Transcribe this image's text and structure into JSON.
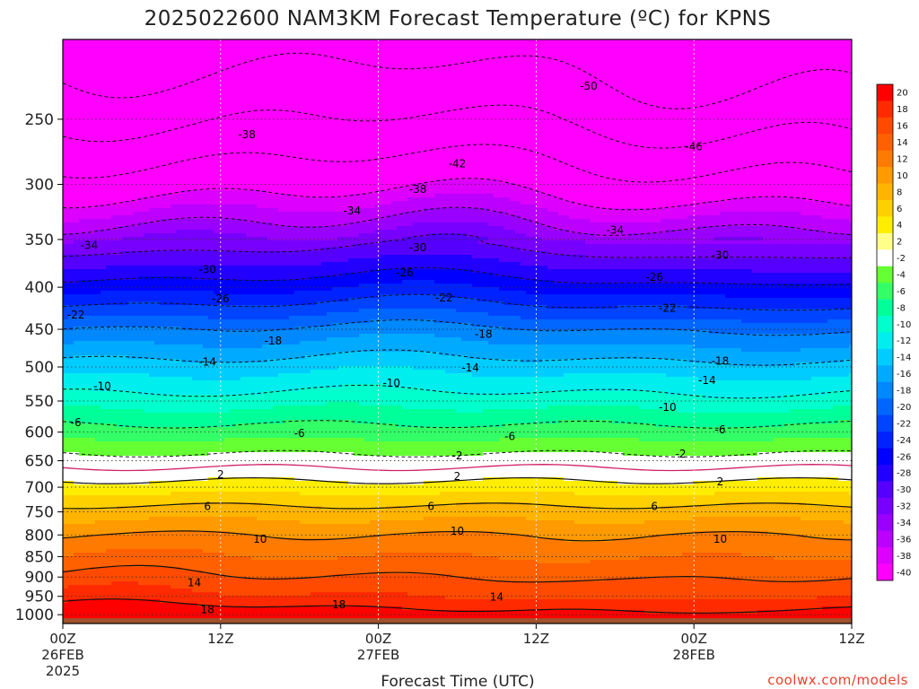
{
  "title": "2025022600 NAM3KM Forecast Temperature (ºC) for KPNS",
  "credit": "coolwx.com/models",
  "colors": {
    "ground": "#a0522d",
    "freezing_line": "#d0206a",
    "contour": "#111111",
    "credit": "#e8402a"
  },
  "chart_data": {
    "type": "contour",
    "title": "2025022600 NAM3KM Forecast Temperature (ºC) for KPNS",
    "xlabel": "Forecast Time (UTC)",
    "ylabel": "",
    "x_ticks": [
      {
        "hour": 0,
        "label": "00Z",
        "sub1": "26FEB",
        "sub2": "2025"
      },
      {
        "hour": 12,
        "label": "12Z",
        "sub1": "",
        "sub2": ""
      },
      {
        "hour": 24,
        "label": "00Z",
        "sub1": "27FEB",
        "sub2": ""
      },
      {
        "hour": 36,
        "label": "12Z",
        "sub1": "",
        "sub2": ""
      },
      {
        "hour": 48,
        "label": "00Z",
        "sub1": "28FEB",
        "sub2": ""
      },
      {
        "hour": 60,
        "label": "12Z",
        "sub1": "",
        "sub2": ""
      }
    ],
    "x_range_hours": [
      0,
      60
    ],
    "y_ticks": [
      250,
      300,
      350,
      400,
      450,
      500,
      550,
      600,
      650,
      700,
      750,
      800,
      850,
      900,
      950,
      1000
    ],
    "y_range_hpa": [
      1025,
      200
    ],
    "grid": true,
    "colorbar": {
      "levels": [
        20,
        18,
        16,
        14,
        12,
        10,
        8,
        6,
        4,
        2,
        -2,
        -4,
        -6,
        -8,
        -10,
        -12,
        -14,
        -16,
        -18,
        -20,
        -22,
        -24,
        -26,
        -28,
        -30,
        -32,
        -34,
        -36,
        -38,
        -40
      ],
      "colors": [
        "#ff0000",
        "#ff2a00",
        "#ff4a00",
        "#ff6000",
        "#ff7a00",
        "#ff9a00",
        "#ffb400",
        "#ffd000",
        "#ffee00",
        "#ffff8a",
        "#ffffff",
        "#66ff33",
        "#33ff66",
        "#00ff99",
        "#00ffcc",
        "#00eeee",
        "#00ccff",
        "#00aaff",
        "#0088ff",
        "#0066ff",
        "#0044ff",
        "#0022ff",
        "#0000ff",
        "#2200ff",
        "#5500ff",
        "#7700ff",
        "#9900ff",
        "#bb00ff",
        "#dd00ff",
        "#ff00ff"
      ],
      "location": "right"
    },
    "temperature_profile": {
      "pressure_hpa": [
        200,
        250,
        300,
        350,
        400,
        450,
        500,
        550,
        600,
        650,
        700,
        750,
        800,
        850,
        900,
        950,
        1000
      ],
      "temperature_c": [
        -53,
        -47,
        -40,
        -32,
        -25,
        -18,
        -13,
        -9,
        -5,
        -1,
        3,
        7,
        10,
        12,
        14,
        16,
        19
      ]
    },
    "contours": [
      {
        "level": -50,
        "label": "-50",
        "label_hour": 40,
        "label_hpa": 228
      },
      {
        "level": -46,
        "label": "-46",
        "label_hour": 48,
        "label_hpa": 270
      },
      {
        "level": -42,
        "label": "-42",
        "label_hour": 30,
        "label_hpa": 283
      },
      {
        "level": -38,
        "label": "-38",
        "label_hour": 14,
        "label_hpa": 261
      },
      {
        "level": -38,
        "label": "-38",
        "label_hour": 27,
        "label_hpa": 304
      },
      {
        "level": -34,
        "label": "-34",
        "label_hour": 2,
        "label_hpa": 356
      },
      {
        "level": -34,
        "label": "-34",
        "label_hour": 22,
        "label_hpa": 323
      },
      {
        "level": -34,
        "label": "-34",
        "label_hour": 42,
        "label_hpa": 341
      },
      {
        "level": -30,
        "label": "-30",
        "label_hour": 11,
        "label_hpa": 381
      },
      {
        "level": -30,
        "label": "-30",
        "label_hour": 27,
        "label_hpa": 358
      },
      {
        "level": -30,
        "label": "-30",
        "label_hour": 50,
        "label_hpa": 366
      },
      {
        "level": -26,
        "label": "-26",
        "label_hour": 12,
        "label_hpa": 413
      },
      {
        "level": -26,
        "label": "-26",
        "label_hour": 26,
        "label_hpa": 384
      },
      {
        "level": -26,
        "label": "-26",
        "label_hour": 45,
        "label_hpa": 389
      },
      {
        "level": -22,
        "label": "-22",
        "label_hour": 1,
        "label_hpa": 432
      },
      {
        "level": -22,
        "label": "-22",
        "label_hour": 29,
        "label_hpa": 412
      },
      {
        "level": -22,
        "label": "-22",
        "label_hour": 46,
        "label_hpa": 424
      },
      {
        "level": -18,
        "label": "-18",
        "label_hour": 16,
        "label_hpa": 465
      },
      {
        "level": -18,
        "label": "-18",
        "label_hour": 32,
        "label_hpa": 456
      },
      {
        "level": -18,
        "label": "-18",
        "label_hour": 50,
        "label_hpa": 492
      },
      {
        "level": -14,
        "label": "-14",
        "label_hour": 11,
        "label_hpa": 493
      },
      {
        "level": -14,
        "label": "-14",
        "label_hour": 31,
        "label_hpa": 501
      },
      {
        "level": -14,
        "label": "-14",
        "label_hour": 49,
        "label_hpa": 519
      },
      {
        "level": -10,
        "label": "-10",
        "label_hour": 3,
        "label_hpa": 528
      },
      {
        "level": -10,
        "label": "-10",
        "label_hour": 25,
        "label_hpa": 523
      },
      {
        "level": -10,
        "label": "-10",
        "label_hour": 46,
        "label_hpa": 560
      },
      {
        "level": -6,
        "label": "-6",
        "label_hour": 1,
        "label_hpa": 584
      },
      {
        "level": -6,
        "label": "-6",
        "label_hour": 18,
        "label_hpa": 602
      },
      {
        "level": -6,
        "label": "-6",
        "label_hour": 34,
        "label_hpa": 607
      },
      {
        "level": -6,
        "label": "-6",
        "label_hour": 50,
        "label_hpa": 596
      },
      {
        "level": -2,
        "label": "-2",
        "label_hour": 30,
        "label_hpa": 641
      },
      {
        "level": -2,
        "label": "-2",
        "label_hour": 47,
        "label_hpa": 638
      },
      {
        "level": 2,
        "label": "2",
        "label_hour": 12,
        "label_hpa": 676
      },
      {
        "level": 2,
        "label": "2",
        "label_hour": 30,
        "label_hpa": 679
      },
      {
        "level": 2,
        "label": "2",
        "label_hour": 50,
        "label_hpa": 689
      },
      {
        "level": 6,
        "label": "6",
        "label_hour": 11,
        "label_hpa": 739
      },
      {
        "level": 6,
        "label": "6",
        "label_hour": 28,
        "label_hpa": 739
      },
      {
        "level": 6,
        "label": "6",
        "label_hour": 45,
        "label_hpa": 739
      },
      {
        "level": 10,
        "label": "10",
        "label_hour": 15,
        "label_hpa": 810
      },
      {
        "level": 10,
        "label": "10",
        "label_hour": 30,
        "label_hpa": 791
      },
      {
        "level": 10,
        "label": "10",
        "label_hour": 50,
        "label_hpa": 810
      },
      {
        "level": 14,
        "label": "14",
        "label_hour": 10,
        "label_hpa": 914
      },
      {
        "level": 14,
        "label": "14",
        "label_hour": 33,
        "label_hpa": 952
      },
      {
        "level": 18,
        "label": "18",
        "label_hour": 11,
        "label_hpa": 986
      },
      {
        "level": 18,
        "label": "18",
        "label_hour": 21,
        "label_hpa": 972
      }
    ]
  }
}
